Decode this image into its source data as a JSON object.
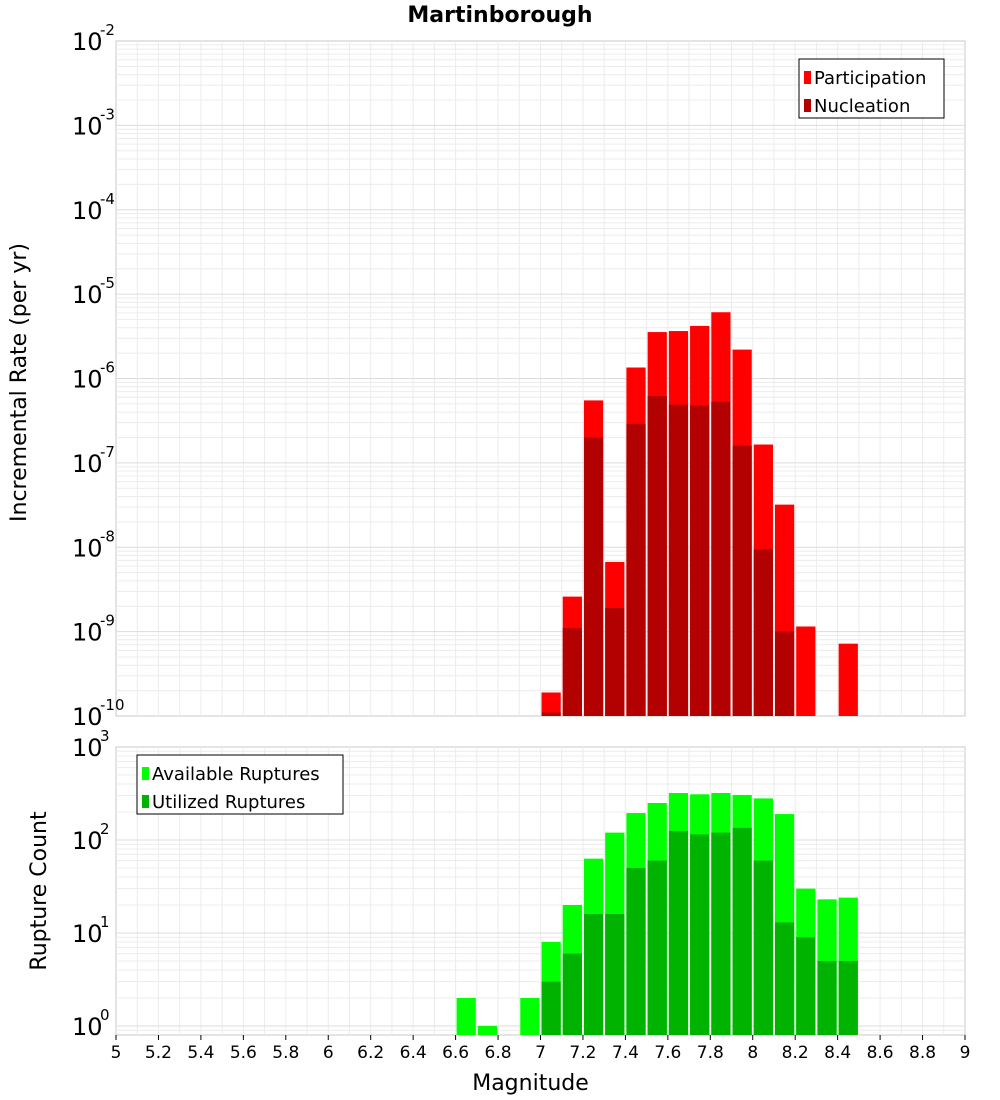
{
  "chart_data": [
    {
      "type": "bar",
      "title": "Martinborough",
      "xlabel": "Magnitude",
      "ylabel": "Incremental Rate (per yr)",
      "yscale": "log",
      "ylim": [
        1e-10,
        0.01
      ],
      "xlim": [
        5,
        9
      ],
      "legend": "top-right",
      "grid": true,
      "series": [
        {
          "name": "Participation",
          "color": "#ff0000",
          "x": [
            7.05,
            7.15,
            7.25,
            7.35,
            7.45,
            7.55,
            7.65,
            7.75,
            7.85,
            7.95,
            8.05,
            8.15,
            8.25,
            8.35,
            8.45
          ],
          "values": [
            1.9e-10,
            2.6e-09,
            5.5e-07,
            6.7e-09,
            1.35e-06,
            3.55e-06,
            3.65e-06,
            4.2e-06,
            6.1e-06,
            2.2e-06,
            1.65e-07,
            3.2e-08,
            1.15e-09,
            null,
            7.2e-10
          ]
        },
        {
          "name": "Nucleation",
          "color": "#b30000",
          "x": [
            7.05,
            7.15,
            7.25,
            7.35,
            7.45,
            7.55,
            7.65,
            7.75,
            7.85,
            7.95,
            8.05,
            8.15,
            8.25,
            8.35,
            8.45
          ],
          "values": [
            1.1e-10,
            1.1e-09,
            2e-07,
            1.9e-09,
            2.9e-07,
            6.2e-07,
            4.9e-07,
            4.8e-07,
            5.3e-07,
            1.6e-07,
            9.5e-09,
            1e-09,
            null,
            null,
            null
          ]
        }
      ]
    },
    {
      "type": "bar",
      "xlabel": "Magnitude",
      "ylabel": "Rupture Count",
      "yscale": "log",
      "ylim": [
        0.8,
        1000
      ],
      "xlim": [
        5,
        9
      ],
      "xticks": [
        "5",
        "5.2",
        "5.4",
        "5.6",
        "5.8",
        "6",
        "6.2",
        "6.4",
        "6.6",
        "6.8",
        "7",
        "7.2",
        "7.4",
        "7.6",
        "7.8",
        "8",
        "8.2",
        "8.4",
        "8.6",
        "8.8",
        "9"
      ],
      "legend": "top-left",
      "grid": true,
      "series": [
        {
          "name": "Available Ruptures",
          "color": "#00ff00",
          "x": [
            6.65,
            6.75,
            6.95,
            7.05,
            7.15,
            7.25,
            7.35,
            7.45,
            7.55,
            7.65,
            7.75,
            7.85,
            7.95,
            8.05,
            8.15,
            8.25,
            8.35,
            8.45
          ],
          "values": [
            2,
            1,
            2,
            8,
            20,
            63,
            120,
            195,
            250,
            320,
            310,
            320,
            305,
            280,
            190,
            30,
            23,
            24
          ]
        },
        {
          "name": "Utilized Ruptures",
          "color": "#00b300",
          "x": [
            7.05,
            7.15,
            7.25,
            7.35,
            7.45,
            7.55,
            7.65,
            7.75,
            7.85,
            7.95,
            8.05,
            8.15,
            8.25,
            8.35,
            8.45
          ],
          "values": [
            3,
            6,
            16,
            16,
            50,
            60,
            125,
            115,
            120,
            135,
            60,
            13,
            9,
            5,
            5
          ]
        }
      ]
    }
  ]
}
